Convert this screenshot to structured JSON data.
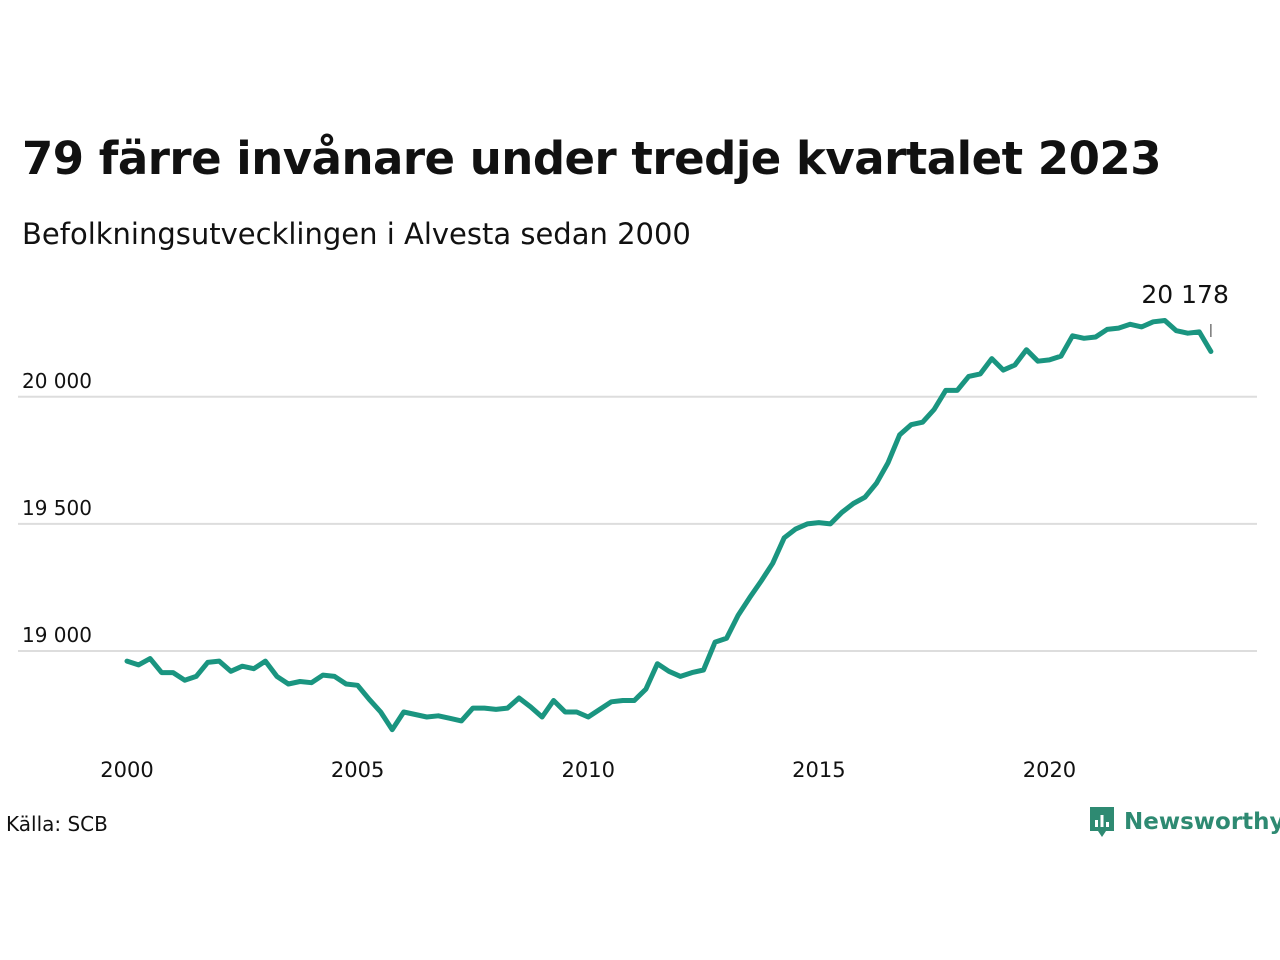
{
  "title": "79 färre invånare under tredje kvartalet 2023",
  "subtitle": "Befolkningsutvecklingen i Alvesta sedan 2000",
  "source": "Källa: SCB",
  "brand": {
    "name": "Newsworthy",
    "icon": "newsworthy-logo-icon",
    "color": "#2e8a72"
  },
  "colors": {
    "line": "#1a9580",
    "grid": "#dddddd"
  },
  "chart_data": {
    "type": "line",
    "title": "79 färre invånare under tredje kvartalet 2023",
    "subtitle": "Befolkningsutvecklingen i Alvesta sedan 2000",
    "xlabel": "",
    "ylabel": "",
    "x_ticks": [
      2000,
      2005,
      2010,
      2015,
      2020
    ],
    "y_ticks": [
      19000,
      19500,
      20000
    ],
    "y_tick_labels": [
      "19 000",
      "19 500",
      "20 000"
    ],
    "ylim": [
      18630,
      20420
    ],
    "xlim": [
      2000.0,
      2024.5
    ],
    "grid": "horizontal",
    "last_value_label": "20 178",
    "series": [
      {
        "x_start": 2000.0,
        "step": 0.25,
        "values": [
          18960,
          18945,
          18970,
          18915,
          18915,
          18885,
          18900,
          18955,
          18960,
          18920,
          18940,
          18930,
          18960,
          18900,
          18870,
          18880,
          18875,
          18905,
          18900,
          18870,
          18865,
          18810,
          18760,
          18690,
          18760,
          18750,
          18740,
          18745,
          18735,
          18725,
          18775,
          18775,
          18770,
          18775,
          18815,
          18780,
          18740,
          18805,
          18760,
          18760,
          18740,
          18770,
          18800,
          18805,
          18805,
          18850,
          18950,
          18920,
          18900,
          18915,
          18925,
          19035,
          19050,
          19140,
          19210,
          19275,
          19345,
          19445,
          19480,
          19500,
          19505,
          19500,
          19545,
          19580,
          19605,
          19660,
          19740,
          19850,
          19890,
          19900,
          19950,
          20025,
          20025,
          20080,
          20090,
          20150,
          20105,
          20125,
          20185,
          20140,
          20145,
          20160,
          20240,
          20230,
          20235,
          20265,
          20270,
          20285,
          20275,
          20295,
          20300,
          20260,
          20250,
          20255,
          20178
        ]
      }
    ]
  }
}
